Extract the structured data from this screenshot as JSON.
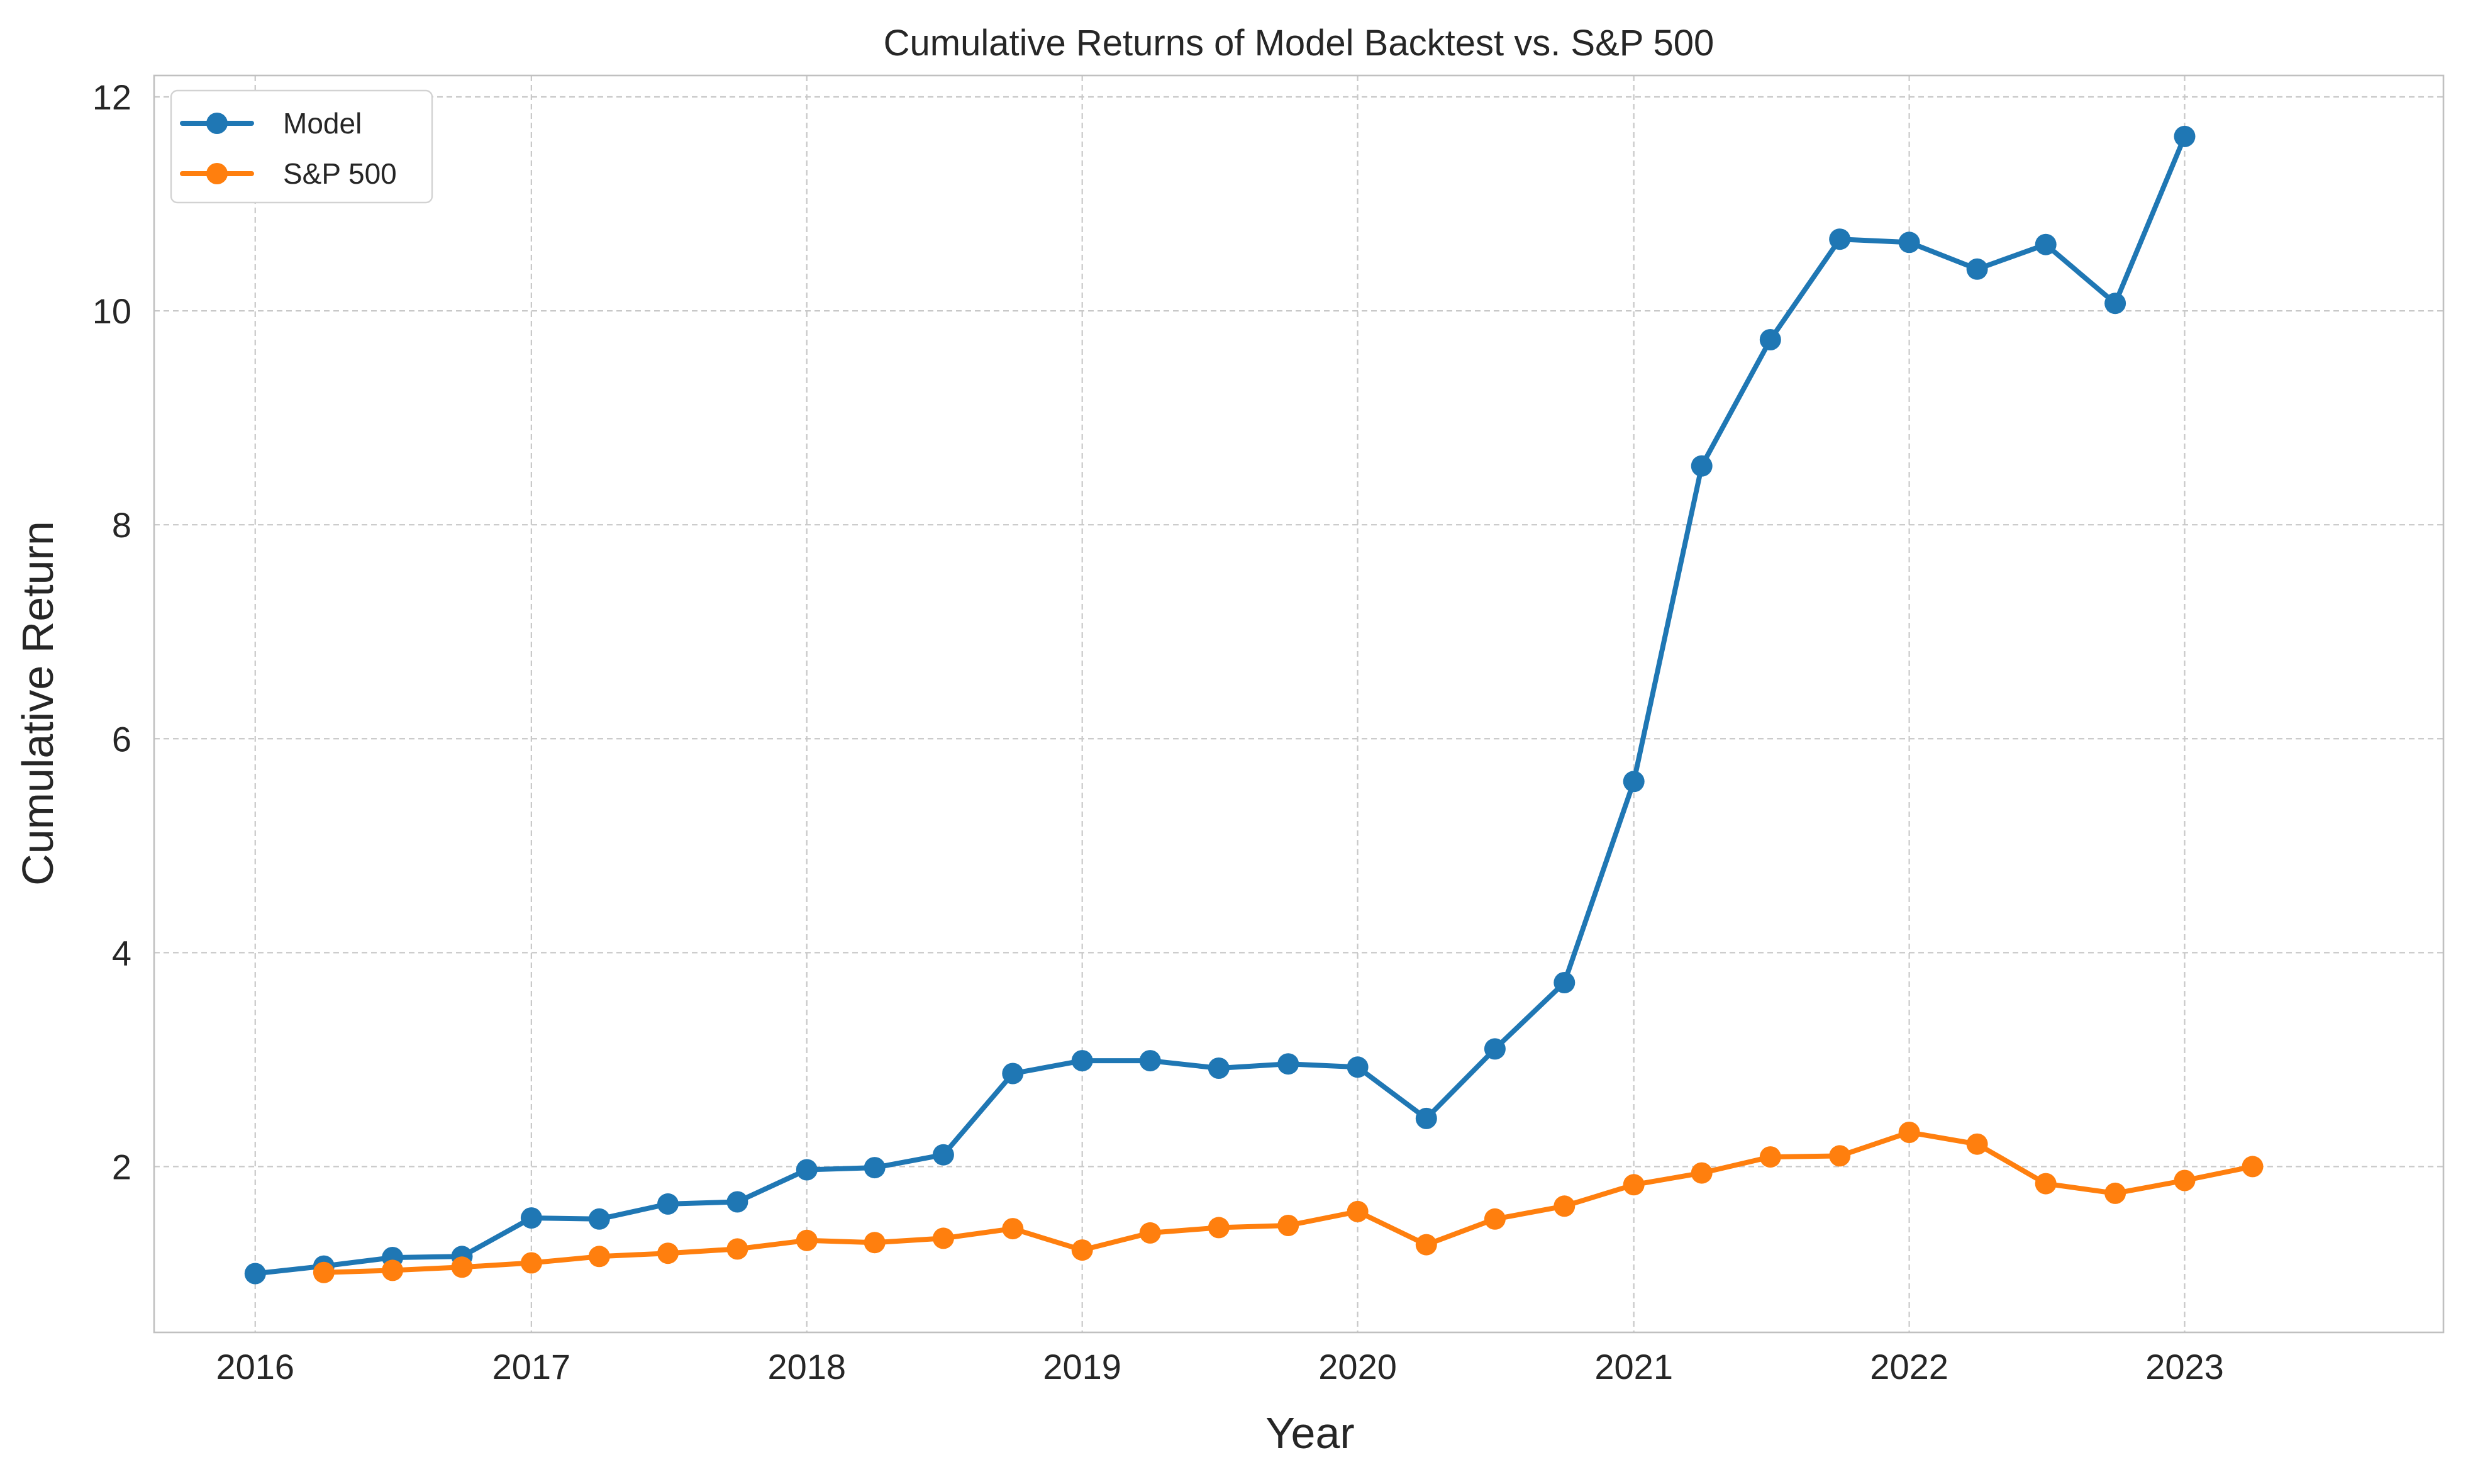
{
  "chart_data": {
    "type": "line",
    "title": "Cumulative Returns of Model Backtest vs. S&P 500",
    "xlabel": "Year",
    "ylabel": "Cumulative Return",
    "x_unit": "date",
    "xlim": [
      "2015-08-20",
      "2023-12-10"
    ],
    "ylim": [
      0.45,
      12.2
    ],
    "x_ticks": [
      {
        "date": "2016-01-01",
        "label": "2016"
      },
      {
        "date": "2017-01-01",
        "label": "2017"
      },
      {
        "date": "2018-01-01",
        "label": "2018"
      },
      {
        "date": "2019-01-01",
        "label": "2019"
      },
      {
        "date": "2020-01-01",
        "label": "2020"
      },
      {
        "date": "2021-01-01",
        "label": "2021"
      },
      {
        "date": "2022-01-01",
        "label": "2022"
      },
      {
        "date": "2023-01-01",
        "label": "2023"
      }
    ],
    "y_ticks": [
      {
        "value": 2,
        "label": "2"
      },
      {
        "value": 4,
        "label": "4"
      },
      {
        "value": 6,
        "label": "6"
      },
      {
        "value": 8,
        "label": "8"
      },
      {
        "value": 10,
        "label": "10"
      },
      {
        "value": 12,
        "label": "12"
      }
    ],
    "grid": true,
    "legend_position": "top-left",
    "series": [
      {
        "name": "Model",
        "color": "#1f77b4",
        "marker": "circle",
        "points": [
          [
            "2016-01-01",
            1.0
          ],
          [
            "2016-04-01",
            1.07
          ],
          [
            "2016-07-01",
            1.15
          ],
          [
            "2016-10-01",
            1.16
          ],
          [
            "2017-01-01",
            1.52
          ],
          [
            "2017-04-01",
            1.51
          ],
          [
            "2017-07-01",
            1.65
          ],
          [
            "2017-10-01",
            1.67
          ],
          [
            "2018-01-01",
            1.97
          ],
          [
            "2018-04-01",
            1.99
          ],
          [
            "2018-07-01",
            2.11
          ],
          [
            "2018-10-01",
            2.87
          ],
          [
            "2019-01-01",
            2.99
          ],
          [
            "2019-04-01",
            2.99
          ],
          [
            "2019-07-01",
            2.92
          ],
          [
            "2019-10-01",
            2.96
          ],
          [
            "2020-01-01",
            2.93
          ],
          [
            "2020-04-01",
            2.45
          ],
          [
            "2020-07-01",
            3.1
          ],
          [
            "2020-10-01",
            3.72
          ],
          [
            "2021-01-01",
            5.6
          ],
          [
            "2021-04-01",
            8.55
          ],
          [
            "2021-07-01",
            9.73
          ],
          [
            "2021-10-01",
            10.67
          ],
          [
            "2022-01-01",
            10.64
          ],
          [
            "2022-04-01",
            10.39
          ],
          [
            "2022-07-01",
            10.62
          ],
          [
            "2022-10-01",
            10.07
          ],
          [
            "2023-01-01",
            11.63
          ]
        ]
      },
      {
        "name": "S&P 500",
        "color": "#ff7f0e",
        "marker": "circle",
        "points": [
          [
            "2016-04-01",
            1.01
          ],
          [
            "2016-07-01",
            1.03
          ],
          [
            "2016-10-01",
            1.06
          ],
          [
            "2017-01-01",
            1.1
          ],
          [
            "2017-04-01",
            1.16
          ],
          [
            "2017-07-01",
            1.19
          ],
          [
            "2017-10-01",
            1.23
          ],
          [
            "2018-01-01",
            1.31
          ],
          [
            "2018-04-01",
            1.29
          ],
          [
            "2018-07-01",
            1.33
          ],
          [
            "2018-10-01",
            1.42
          ],
          [
            "2019-01-01",
            1.22
          ],
          [
            "2019-04-01",
            1.38
          ],
          [
            "2019-07-01",
            1.43
          ],
          [
            "2019-10-01",
            1.45
          ],
          [
            "2020-01-01",
            1.58
          ],
          [
            "2020-04-01",
            1.27
          ],
          [
            "2020-07-01",
            1.51
          ],
          [
            "2020-10-01",
            1.63
          ],
          [
            "2021-01-01",
            1.83
          ],
          [
            "2021-04-01",
            1.94
          ],
          [
            "2021-07-01",
            2.09
          ],
          [
            "2021-10-01",
            2.1
          ],
          [
            "2022-01-01",
            2.32
          ],
          [
            "2022-04-01",
            2.21
          ],
          [
            "2022-07-01",
            1.84
          ],
          [
            "2022-10-01",
            1.75
          ],
          [
            "2023-01-01",
            1.87
          ],
          [
            "2023-04-01",
            2.0
          ]
        ]
      }
    ]
  }
}
